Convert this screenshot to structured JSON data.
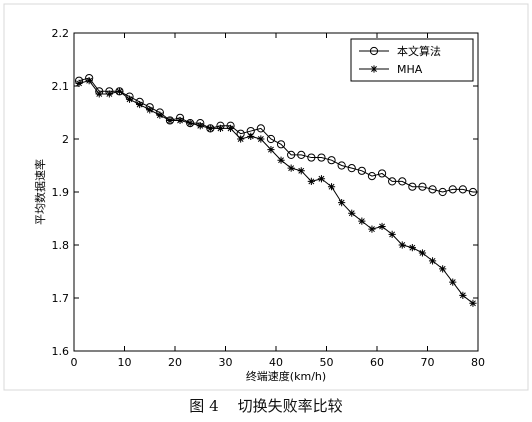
{
  "caption": "图 4    切换失败率比较",
  "chart_data": {
    "type": "line",
    "xlabel": "终端速度(km/h)",
    "ylabel": "平均数据速率",
    "xlim": [
      0,
      80
    ],
    "ylim": [
      1.6,
      2.2
    ],
    "xticks": [
      0,
      10,
      20,
      30,
      40,
      50,
      60,
      70,
      80
    ],
    "yticks": [
      1.6,
      1.7,
      1.8,
      1.9,
      2.0,
      2.1,
      2.2
    ],
    "xtick_labels": [
      "0",
      "10",
      "20",
      "30",
      "40",
      "50",
      "60",
      "70",
      "80"
    ],
    "ytick_labels": [
      "1.6",
      "1.7",
      "1.8",
      "1.9",
      "2",
      "2.1",
      "2.2"
    ],
    "grid": false,
    "legend": "top-right",
    "x": [
      1,
      3,
      5,
      7,
      9,
      11,
      13,
      15,
      17,
      19,
      21,
      23,
      25,
      27,
      29,
      31,
      33,
      35,
      37,
      39,
      41,
      43,
      45,
      47,
      49,
      51,
      53,
      55,
      57,
      59,
      61,
      63,
      65,
      67,
      69,
      71,
      73,
      75,
      77,
      79
    ],
    "series": [
      {
        "name": "本文算法",
        "marker": "circle",
        "values": [
          2.11,
          2.115,
          2.09,
          2.09,
          2.09,
          2.08,
          2.07,
          2.06,
          2.05,
          2.035,
          2.04,
          2.03,
          2.03,
          2.02,
          2.025,
          2.025,
          2.01,
          2.015,
          2.02,
          2.0,
          1.99,
          1.97,
          1.97,
          1.965,
          1.965,
          1.96,
          1.95,
          1.945,
          1.94,
          1.93,
          1.935,
          1.92,
          1.92,
          1.91,
          1.91,
          1.905,
          1.9,
          1.905,
          1.905,
          1.9
        ]
      },
      {
        "name": "MHA",
        "marker": "star",
        "values": [
          2.105,
          2.11,
          2.085,
          2.085,
          2.09,
          2.075,
          2.065,
          2.055,
          2.045,
          2.035,
          2.035,
          2.03,
          2.025,
          2.02,
          2.02,
          2.02,
          2.0,
          2.005,
          2.0,
          1.98,
          1.96,
          1.945,
          1.94,
          1.92,
          1.925,
          1.91,
          1.88,
          1.86,
          1.845,
          1.83,
          1.835,
          1.82,
          1.8,
          1.795,
          1.785,
          1.77,
          1.755,
          1.73,
          1.705,
          1.69
        ]
      }
    ]
  }
}
